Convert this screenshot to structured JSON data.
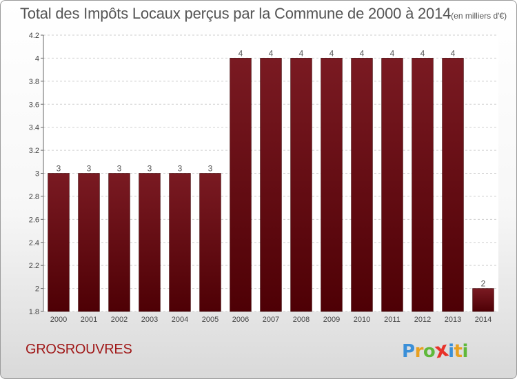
{
  "chart_data": {
    "type": "bar",
    "title": "Total des Impôts Locaux perçus par la Commune de 2000 à 2014",
    "unit_note": "(en milliers d'€)",
    "categories": [
      "2000",
      "2001",
      "2002",
      "2003",
      "2004",
      "2005",
      "2006",
      "2007",
      "2008",
      "2009",
      "2010",
      "2011",
      "2012",
      "2013",
      "2014"
    ],
    "values": [
      3,
      3,
      3,
      3,
      3,
      3,
      4,
      4,
      4,
      4,
      4,
      4,
      4,
      4,
      2
    ],
    "data_labels": [
      "3",
      "3",
      "3",
      "3",
      "3",
      "3",
      "4",
      "4",
      "4",
      "4",
      "4",
      "4",
      "4",
      "4",
      "2"
    ],
    "ylim": [
      1.8,
      4.2
    ],
    "yticks": [
      1.8,
      2,
      2.2,
      2.4,
      2.6,
      2.8,
      3,
      3.2,
      3.4,
      3.6,
      3.8,
      4,
      4.2
    ],
    "ytick_labels": [
      "1.8",
      "2",
      "2.2",
      "2.4",
      "2.6",
      "2.8",
      "3",
      "3.2",
      "3.4",
      "3.6",
      "3.8",
      "4",
      "4.2"
    ],
    "grid": true,
    "bar_color": "#7a1a22",
    "bar_color_dark": "#4e0005"
  },
  "commune": "GROSROUVRES",
  "brand": {
    "letters": [
      "P",
      "r",
      "o",
      "x",
      "i",
      "t",
      "i"
    ],
    "colors": [
      "#3a8fd8",
      "#e8a020",
      "#5fb83a",
      "#e8322a",
      "#3a8fd8",
      "#e8a020",
      "#5fb83a"
    ]
  }
}
